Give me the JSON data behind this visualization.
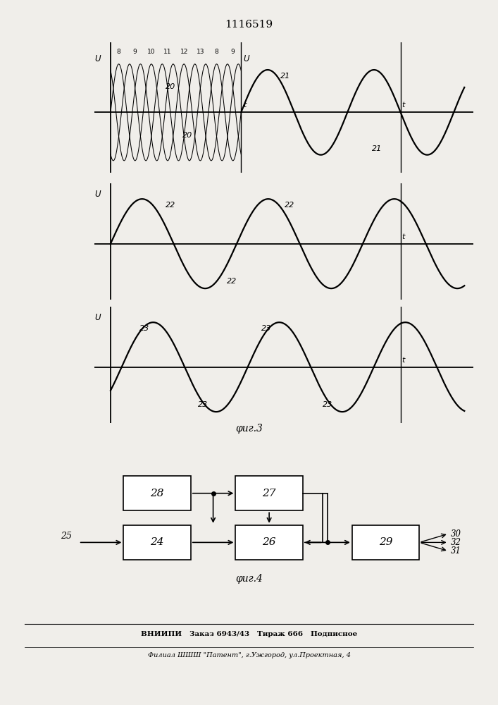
{
  "title": "1116519",
  "fig3_label": "φиг.3",
  "fig4_label": "φиг.4",
  "footer1": "ВНИИПИ   Заказ 6943/43   Тираж 666   Подписное",
  "footer2": "Филиал ШШШ \"Патент\", г.Ужгород, ул.Проектная, 4",
  "bg_color": "#f0eeea"
}
